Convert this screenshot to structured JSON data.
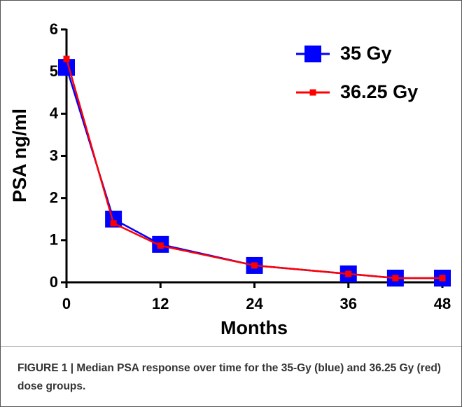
{
  "chart_data": {
    "type": "line",
    "x_label": "Months",
    "y_label": "PSA ng/ml",
    "x": [
      0,
      6,
      12,
      24,
      36,
      42,
      48
    ],
    "series": [
      {
        "name": "35 Gy",
        "color": "#0000ff",
        "marker": "large-square",
        "values": [
          5.1,
          1.5,
          0.9,
          0.4,
          0.2,
          0.1,
          0.1
        ]
      },
      {
        "name": "36.25 Gy",
        "color": "#ff0000",
        "marker": "small-square",
        "values": [
          5.3,
          1.4,
          0.87,
          0.4,
          0.2,
          0.1,
          0.1
        ]
      }
    ],
    "xlim": [
      0,
      48
    ],
    "xticks": [
      0,
      12,
      24,
      36,
      48
    ],
    "ylim": [
      0,
      6
    ],
    "yticks": [
      0,
      1,
      2,
      3,
      4,
      5,
      6
    ],
    "legend": "top-right",
    "caption": "FIGURE 1 | Median PSA response over time for the 35-Gy (blue) and 36.25 Gy (red) dose groups."
  }
}
